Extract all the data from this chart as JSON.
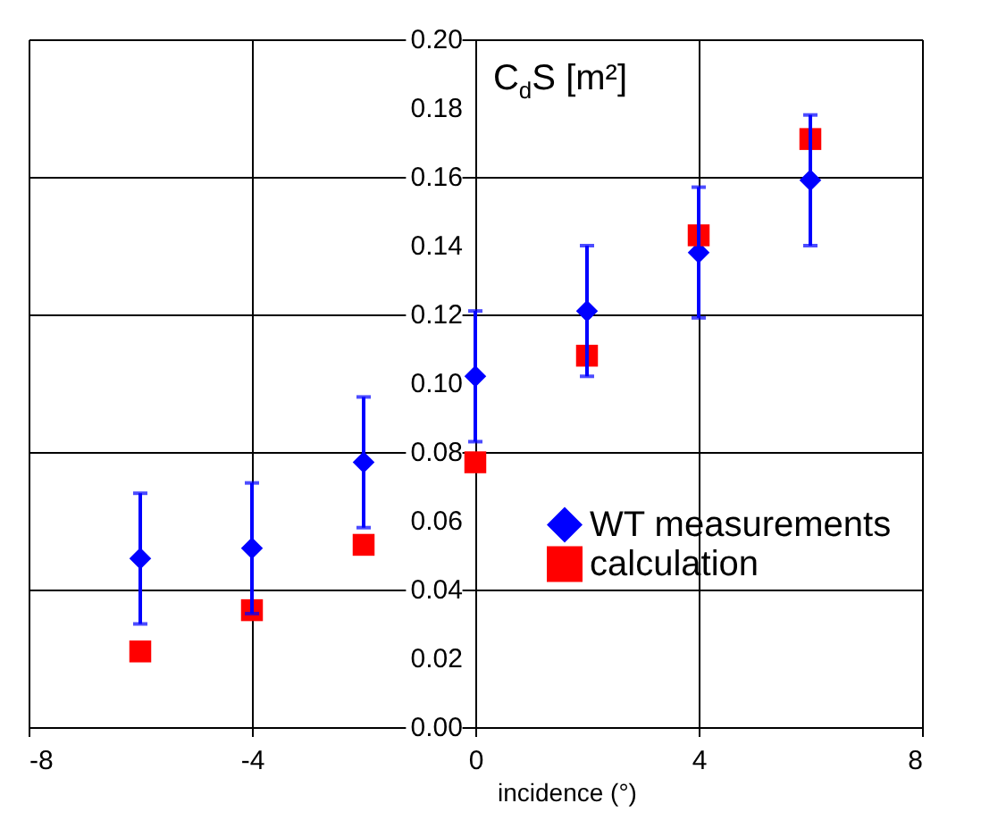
{
  "chart_data": {
    "type": "scatter",
    "ylabel": "C$_{d}$S [m²]",
    "xlabel": "incidence (°)",
    "x": [
      -6,
      -4,
      -2,
      0,
      2,
      4,
      6
    ],
    "series": [
      {
        "name": "WT measurements",
        "color": "#0000ff",
        "marker": "diamond",
        "values": [
          0.049,
          0.052,
          0.077,
          0.102,
          0.121,
          0.138,
          0.159
        ],
        "errors": [
          [
            0.03,
            0.068
          ],
          [
            0.033,
            0.071
          ],
          [
            0.058,
            0.096
          ],
          [
            0.083,
            0.121
          ],
          [
            0.102,
            0.14
          ],
          [
            0.119,
            0.157
          ],
          [
            0.14,
            0.178
          ]
        ]
      },
      {
        "name": "calculation",
        "color": "#ff0000",
        "marker": "square",
        "values": [
          0.022,
          0.034,
          0.053,
          0.077,
          0.108,
          0.143,
          0.171
        ]
      }
    ],
    "xlim": [
      -8,
      8
    ],
    "xticks": [
      -8,
      -4,
      0,
      4,
      8
    ],
    "ylim": [
      0,
      0.2
    ],
    "yticks": [
      {
        "value": 0,
        "label": "0.00"
      },
      {
        "value": 0.02,
        "label": "0.02"
      },
      {
        "value": 0.04,
        "label": "0.04"
      },
      {
        "value": 0.06,
        "label": "0.06"
      },
      {
        "value": 0.08,
        "label": "0.08"
      },
      {
        "value": 0.1,
        "label": "0.10"
      },
      {
        "value": 0.12,
        "label": "0.12"
      },
      {
        "value": 0.14,
        "label": "0.14"
      },
      {
        "value": 0.16,
        "label": "0.16"
      },
      {
        "value": 0.18,
        "label": "0.18"
      },
      {
        "value": 0.2,
        "label": "0.20"
      }
    ],
    "grid": true,
    "legend": "right"
  }
}
